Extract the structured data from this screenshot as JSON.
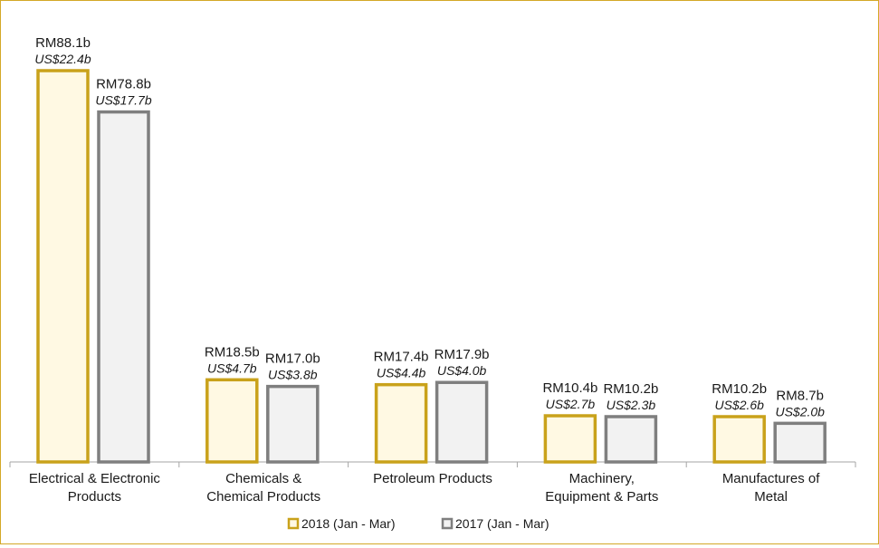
{
  "colors": {
    "s2018_fill": "#fff9e3",
    "s2018_stroke": "#c9a21b",
    "s2017_fill": "#f2f2f2",
    "s2017_stroke": "#7f7f7f",
    "axis": "#a6a6a6",
    "frame": "#d4a827"
  },
  "chart_data": {
    "type": "bar",
    "title": "",
    "xlabel": "",
    "ylabel": "",
    "ylim": [
      0,
      95
    ],
    "grid": false,
    "legend_position": "bottom",
    "categories": [
      [
        "Electrical & Electronic",
        "Products"
      ],
      [
        "Chemicals &",
        "Chemical Products"
      ],
      [
        "Petroleum Products"
      ],
      [
        "Machinery,",
        "Equipment & Parts"
      ],
      [
        "Manufactures of",
        "Metal"
      ]
    ],
    "series": [
      {
        "name": "2018 (Jan - Mar)",
        "values": [
          88.1,
          18.5,
          17.4,
          10.4,
          10.2
        ],
        "labels_rm": [
          "RM88.1b",
          "RM18.5b",
          "RM17.4b",
          "RM10.4b",
          "RM10.2b"
        ],
        "labels_usd": [
          "US$22.4b",
          "US$4.7b",
          "US$4.4b",
          "US$2.7b",
          "US$2.6b"
        ]
      },
      {
        "name": "2017 (Jan - Mar)",
        "values": [
          78.8,
          17.0,
          17.9,
          10.2,
          8.7
        ],
        "labels_rm": [
          "RM78.8b",
          "RM17.0b",
          "RM17.9b",
          "RM10.2b",
          "RM8.7b"
        ],
        "labels_usd": [
          "US$17.7b",
          "US$3.8b",
          "US$4.0b",
          "US$2.3b",
          "US$2.0b"
        ]
      }
    ]
  }
}
